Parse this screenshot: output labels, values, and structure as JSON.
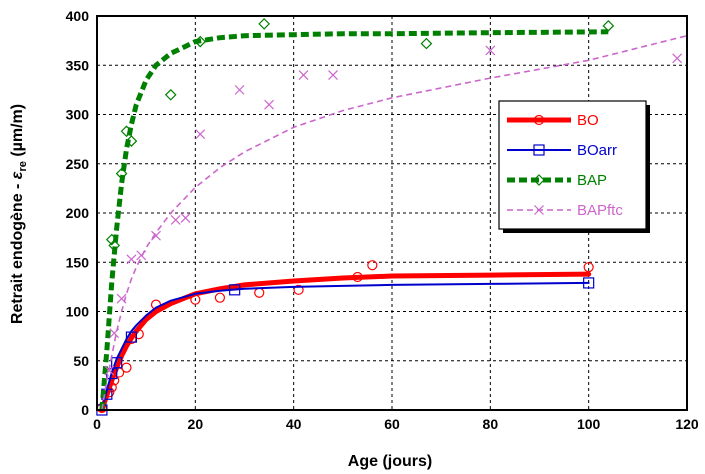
{
  "chart_data": {
    "type": "line",
    "xlabel": "Age (jours)",
    "ylabel": {
      "prefix": "Retrait endogène - ",
      "symbol": "ε",
      "subscript": "re",
      "unit": " (µm/m)"
    },
    "xlim": [
      0,
      120
    ],
    "ylim": [
      0,
      400
    ],
    "xticks": [
      0,
      20,
      40,
      60,
      80,
      100,
      120
    ],
    "yticks": [
      0,
      50,
      100,
      150,
      200,
      250,
      300,
      350,
      400
    ],
    "grid": true,
    "grid_style": "dashed",
    "legend_placement": "right",
    "series": [
      {
        "name": "BO",
        "color": "#ff0000",
        "line_style": "solid-thick",
        "marker": "circle",
        "fit": {
          "x": [
            1,
            2,
            3,
            4,
            5,
            6,
            7,
            8,
            10,
            12,
            15,
            20,
            25,
            30,
            40,
            50,
            60,
            80,
            100
          ],
          "y": [
            0,
            15,
            30,
            43,
            55,
            65,
            73,
            80,
            92,
            100,
            108,
            118,
            123,
            127,
            131,
            134,
            136,
            137,
            138
          ]
        },
        "points": {
          "x": [
            1,
            2.5,
            3,
            3.5,
            4.5,
            6,
            7,
            8.5,
            12,
            20,
            25,
            33,
            41,
            53,
            56,
            100
          ],
          "y": [
            2,
            18,
            23,
            30,
            38,
            43,
            72,
            77,
            107,
            112,
            114,
            119,
            122,
            135,
            147,
            145
          ]
        }
      },
      {
        "name": "BOarr",
        "color": "#0000cc",
        "line_style": "solid-thin",
        "marker": "square",
        "fit": {
          "x": [
            1,
            2,
            3,
            4,
            5,
            6,
            7,
            8,
            10,
            12,
            15,
            20,
            25,
            30,
            40,
            50,
            60,
            80,
            100
          ],
          "y": [
            0,
            20,
            38,
            52,
            62,
            72,
            80,
            86,
            96,
            104,
            111,
            118,
            121,
            123,
            125,
            126,
            127,
            128,
            129
          ]
        },
        "points": {
          "x": [
            1,
            2,
            3,
            4,
            7,
            28,
            100
          ],
          "y": [
            0,
            16,
            37,
            48,
            74,
            122,
            129
          ]
        }
      },
      {
        "name": "BAP",
        "color": "#008000",
        "line_style": "dashed-thick",
        "marker": "diamond",
        "fit": {
          "x": [
            1,
            2,
            3,
            4,
            5,
            6,
            7,
            8,
            10,
            12,
            15,
            20,
            25,
            30,
            40,
            50,
            60,
            80,
            104
          ],
          "y": [
            0,
            60,
            130,
            185,
            230,
            265,
            290,
            310,
            335,
            350,
            362,
            374,
            378,
            380,
            381,
            382,
            382,
            383,
            384
          ]
        },
        "points": {
          "x": [
            3,
            3.5,
            5,
            6,
            7,
            15,
            21,
            34,
            67,
            104
          ],
          "y": [
            173,
            167,
            240,
            283,
            273,
            320,
            374,
            392,
            372,
            390
          ]
        }
      },
      {
        "name": "BAPftc",
        "color": "#cc66cc",
        "line_style": "dashed-thin",
        "marker": "x",
        "fit": {
          "x": [
            1,
            2,
            3,
            4,
            5,
            6,
            7,
            8,
            10,
            12,
            15,
            20,
            25,
            30,
            40,
            50,
            60,
            80,
            100,
            120
          ],
          "y": [
            0,
            30,
            55,
            80,
            100,
            118,
            133,
            145,
            165,
            180,
            200,
            226,
            246,
            262,
            287,
            304,
            317,
            337,
            355,
            380
          ]
        },
        "points": {
          "x": [
            2.5,
            3.5,
            5,
            7,
            9,
            12,
            16,
            18,
            21,
            29,
            35,
            42,
            48,
            80,
            118
          ],
          "y": [
            40,
            78,
            113,
            153,
            157,
            177,
            193,
            195,
            280,
            325,
            310,
            340,
            340,
            365,
            357
          ]
        }
      }
    ]
  }
}
